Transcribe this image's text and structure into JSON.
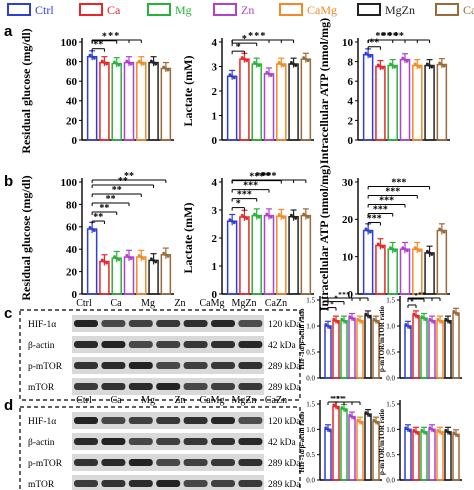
{
  "legend": [
    {
      "label": "Ctrl",
      "color": "#2f3fd6"
    },
    {
      "label": "Ca",
      "color": "#e8262b"
    },
    {
      "label": "Mg",
      "color": "#26b33a"
    },
    {
      "label": "Zn",
      "color": "#b040d0"
    },
    {
      "label": "CaMg",
      "color": "#f28a26"
    },
    {
      "label": "MgZn",
      "color": "#222222"
    },
    {
      "label": "CaZn",
      "color": "#9a6b3a"
    }
  ],
  "panel_letters": {
    "a": "a",
    "b": "b",
    "c": "c",
    "d": "d"
  },
  "chart_data": [
    {
      "panel": "a",
      "type": "bar",
      "categories": [
        "Ctrl",
        "Ca",
        "Mg",
        "Zn",
        "CaMg",
        "MgZn",
        "CaZn"
      ],
      "values": [
        85,
        79,
        78,
        79,
        79,
        79,
        73
      ],
      "ylabel": "Residual glucose (mg/dl)",
      "ylim": [
        0,
        100
      ],
      "yticks": [
        "0",
        "20",
        "40",
        "60",
        "80",
        "100"
      ],
      "sig": [
        "*",
        "*",
        "*",
        "**"
      ],
      "sig_stars": "**"
    },
    {
      "panel": "a",
      "type": "bar",
      "categories": [
        "Ctrl",
        "Ca",
        "Mg",
        "Zn",
        "CaMg",
        "MgZn",
        "CaZn"
      ],
      "values": [
        2.6,
        3.3,
        3.1,
        2.7,
        3.1,
        3.1,
        3.3
      ],
      "ylabel": "Lactate (mM)",
      "ylim": [
        0,
        4
      ],
      "yticks": [
        "0",
        "1",
        "2",
        "3",
        "4"
      ],
      "sig": [
        "*",
        "*",
        "*",
        "*",
        "*"
      ]
    },
    {
      "panel": "a",
      "type": "bar",
      "categories": [
        "Ctrl",
        "Ca",
        "Mg",
        "Zn",
        "CaMg",
        "MgZn",
        "CaZn"
      ],
      "values": [
        8.7,
        7.5,
        7.6,
        8.2,
        7.6,
        7.6,
        7.7
      ],
      "ylabel": "Intracellular ATP (nmol/mg)",
      "ylim": [
        0,
        10
      ],
      "yticks": [
        "0",
        "2",
        "4",
        "6",
        "8",
        "10"
      ],
      "sig": [
        "**",
        "**",
        "**",
        "**",
        "**"
      ]
    },
    {
      "panel": "b",
      "type": "bar",
      "categories": [
        "Ctrl",
        "Ca",
        "Mg",
        "Zn",
        "CaMg",
        "MgZn",
        "CaZn"
      ],
      "values": [
        58,
        29,
        32,
        33,
        33,
        30,
        35
      ],
      "ylabel": "Residual glucose (mg/dl)",
      "ylim": [
        0,
        100
      ],
      "yticks": [
        "0",
        "20",
        "40",
        "60",
        "80",
        "100"
      ],
      "sig": [
        "**",
        "**",
        "**",
        "**",
        "**",
        "**"
      ]
    },
    {
      "panel": "b",
      "type": "bar",
      "categories": [
        "Ctrl",
        "Ca",
        "Mg",
        "Zn",
        "CaMg",
        "MgZn",
        "CaZn"
      ],
      "values": [
        2.6,
        2.75,
        2.8,
        2.8,
        2.78,
        2.76,
        2.8
      ],
      "ylabel": "Lactate (mM)",
      "ylim": [
        0,
        4
      ],
      "yticks": [
        "0",
        "1",
        "2",
        "3",
        "4"
      ],
      "sig": [
        "***",
        "***",
        "***",
        "***",
        "***",
        "*"
      ]
    },
    {
      "panel": "b",
      "type": "bar",
      "categories": [
        "Ctrl",
        "Ca",
        "Mg",
        "Zn",
        "CaMg",
        "MgZn",
        "CaZn"
      ],
      "values": [
        17,
        13,
        12,
        12,
        12,
        11,
        17
      ],
      "ylabel": "Intracellular ATP (nmol/mg)",
      "ylim": [
        0,
        20
      ],
      "yticks": [
        "0",
        "10",
        "20",
        "30"
      ],
      "sig": [
        "***",
        "***",
        "***",
        "***",
        "***"
      ]
    },
    {
      "panel": "c",
      "type": "bar",
      "categories": [
        "Ctrl",
        "Ca",
        "Mg",
        "Zn",
        "CaMg",
        "MgZn",
        "CaZn"
      ],
      "values": [
        1.0,
        1.1,
        1.1,
        1.15,
        1.1,
        1.2,
        1.1
      ],
      "ylabel": "HIF-1α/β-actin ratio",
      "ylim": [
        0,
        1.5
      ],
      "yticks": [
        "0.0",
        "0.5",
        "1.0",
        "1.5"
      ],
      "sig": [
        "*",
        "*",
        "*",
        "*",
        "*"
      ]
    },
    {
      "panel": "c",
      "type": "bar",
      "categories": [
        "Ctrl",
        "Ca",
        "Mg",
        "Zn",
        "CaMg",
        "MgZn",
        "CaZn"
      ],
      "values": [
        1.0,
        1.2,
        1.15,
        1.1,
        1.1,
        1.1,
        1.25
      ],
      "ylabel": "p-mTOR/mTOR ratio",
      "ylim": [
        0,
        1.5
      ],
      "yticks": [
        "0.0",
        "0.5",
        "1.0",
        "1.5"
      ],
      "sig": [
        "*",
        "*",
        "*",
        "*"
      ]
    },
    {
      "panel": "d",
      "type": "bar",
      "categories": [
        "Ctrl",
        "Ca",
        "Mg",
        "Zn",
        "CaMg",
        "MgZn",
        "CaZn"
      ],
      "values": [
        1.0,
        1.45,
        1.4,
        1.25,
        1.15,
        1.3,
        1.15
      ],
      "ylabel": "HIF-1α/β-actin ratio",
      "ylim": [
        0,
        1.5
      ],
      "yticks": [
        "0.0",
        "0.5",
        "1.0",
        "1.5"
      ],
      "sig": [
        "*",
        "**",
        "**",
        "*"
      ]
    },
    {
      "panel": "d",
      "type": "bar",
      "categories": [
        "Ctrl",
        "Ca",
        "Mg",
        "Zn",
        "CaMg",
        "MgZn",
        "CaZn"
      ],
      "values": [
        1.0,
        0.95,
        0.95,
        1.0,
        0.95,
        0.95,
        0.9
      ],
      "ylabel": "p-mTOR/mTOR ratio",
      "ylim": [
        0,
        1.5
      ],
      "yticks": [
        "0.0",
        "0.5",
        "1.0",
        "1.5"
      ],
      "sig": []
    }
  ],
  "blots": {
    "c": {
      "lanes": [
        "Ctrl",
        "Ca",
        "Mg",
        "Zn",
        "CaMg",
        "MgZn",
        "CaZn"
      ],
      "rows": [
        {
          "name": "HIF-1α",
          "kda": "120 kDa"
        },
        {
          "name": "β-actin",
          "kda": "42 kDa"
        },
        {
          "name": "p-mTOR",
          "kda": "289 kDa"
        },
        {
          "name": "mTOR",
          "kda": "289 kDa"
        }
      ]
    },
    "d": {
      "lanes": [
        "Ctrl",
        "Ca",
        "Mg",
        "Zn",
        "CaMg",
        "MgZn",
        "CaZn"
      ],
      "rows": [
        {
          "name": "HIF-1α",
          "kda": "120 kDa"
        },
        {
          "name": "β-actin",
          "kda": "42 kDa"
        },
        {
          "name": "p-mTOR",
          "kda": "289 kDa"
        },
        {
          "name": "mTOR",
          "kda": "289 kDa"
        }
      ]
    }
  }
}
